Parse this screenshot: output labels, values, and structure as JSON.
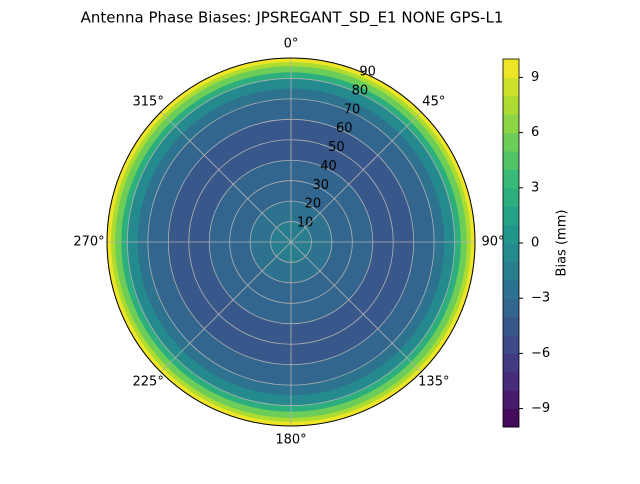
{
  "chart_data": {
    "type": "polar_contour",
    "title": "Antenna Phase Biases: JPSREGANT_SD_E1 NONE GPS-L1",
    "colorbar_label": "Bias (mm)",
    "colormap": "viridis",
    "rlim": [
      0,
      90
    ],
    "rticks": [
      10,
      20,
      30,
      40,
      50,
      60,
      70,
      80,
      90
    ],
    "thetaticks": [
      {
        "value": 0,
        "label": "0°"
      },
      {
        "value": 45,
        "label": "45°"
      },
      {
        "value": 90,
        "label": "90°"
      },
      {
        "value": 135,
        "label": "135°"
      },
      {
        "value": 180,
        "label": "180°"
      },
      {
        "value": 225,
        "label": "225°"
      },
      {
        "value": 270,
        "label": "270°"
      },
      {
        "value": 315,
        "label": "315°"
      }
    ],
    "clim": [
      -10,
      10
    ],
    "cticks": [
      {
        "value": -9,
        "label": "−9"
      },
      {
        "value": -6,
        "label": "−6"
      },
      {
        "value": -3,
        "label": "−3"
      },
      0,
      3,
      6,
      9
    ],
    "levels": [
      -10,
      -9,
      -8,
      -7,
      -6,
      -5,
      -4,
      -3,
      -2,
      -1,
      0,
      1,
      2,
      3,
      4,
      5,
      6,
      7,
      8,
      9,
      10
    ],
    "radii": [
      10,
      20,
      30,
      40,
      50,
      60,
      70,
      75,
      80,
      83,
      86,
      88,
      90
    ],
    "values": [
      -2,
      -3,
      -3.5,
      -4,
      -4.5,
      -4.5,
      -4,
      -3,
      -1,
      2,
      5,
      7,
      9
    ],
    "grid": true
  }
}
